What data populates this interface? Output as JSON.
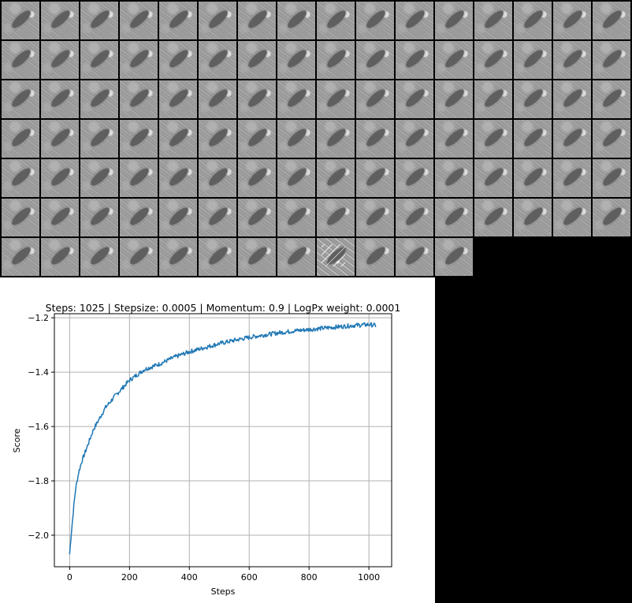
{
  "tiles": {
    "total": 108,
    "noisy_index": 104
  },
  "chart_data": {
    "type": "line",
    "title": "Steps: 1025 | Stepsize: 0.0005 | Momentum: 0.9 | LogPx weight: 0.0001",
    "xlabel": "Steps",
    "ylabel": "Score",
    "xlim": [
      -51,
      1076
    ],
    "ylim": [
      -2.116,
      -1.185
    ],
    "xticks": [
      0,
      200,
      400,
      600,
      800,
      1000
    ],
    "yticks": [
      -2.0,
      -1.8,
      -1.6,
      -1.4,
      -1.2
    ],
    "xtick_labels": [
      "0",
      "200",
      "400",
      "600",
      "800",
      "1000"
    ],
    "ytick_labels": [
      "−2.0",
      "−1.8",
      "−1.6",
      "−1.4",
      "−1.2"
    ],
    "grid": true,
    "line_color": "#1f77b4",
    "x": [
      0,
      5,
      10,
      15,
      20,
      30,
      40,
      50,
      60,
      80,
      100,
      120,
      150,
      200,
      250,
      300,
      350,
      400,
      450,
      500,
      550,
      600,
      650,
      700,
      750,
      800,
      850,
      900,
      950,
      1000,
      1025
    ],
    "y": [
      -2.07,
      -2.0,
      -1.94,
      -1.88,
      -1.83,
      -1.77,
      -1.73,
      -1.7,
      -1.67,
      -1.61,
      -1.57,
      -1.53,
      -1.49,
      -1.43,
      -1.39,
      -1.37,
      -1.345,
      -1.325,
      -1.31,
      -1.295,
      -1.283,
      -1.272,
      -1.263,
      -1.255,
      -1.248,
      -1.243,
      -1.238,
      -1.233,
      -1.228,
      -1.225,
      -1.228
    ]
  }
}
